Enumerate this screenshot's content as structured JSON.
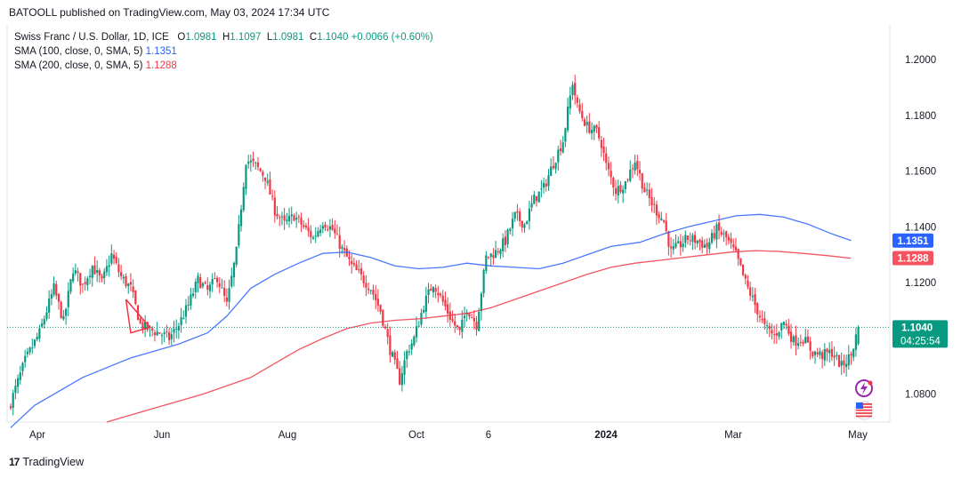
{
  "header": {
    "publisher": "BATOOLL published on TradingView.com, May 03, 2024 17:34 UTC"
  },
  "legend": {
    "symbol": "Swiss Franc / U.S. Dollar, 1D, ICE",
    "open_label": "O",
    "open": "1.0981",
    "high_label": "H",
    "high": "1.1097",
    "low_label": "L",
    "low": "1.0981",
    "close_label": "C",
    "close": "1.1040",
    "change": "+0.0066 (+0.60%)",
    "sma100_label": "SMA (100, close, 0, SMA, 5)",
    "sma100_value": "1.1351",
    "sma200_label": "SMA (200, close, 0, SMA, 5)",
    "sma200_value": "1.1288"
  },
  "price_tags": {
    "sma100": "1.1351",
    "sma200": "1.1288",
    "last": "1.1040",
    "countdown": "04:25:54"
  },
  "colors": {
    "up": "#089981",
    "down": "#f23645",
    "sma100": "#2962ff",
    "sma200": "#f23645",
    "last_tag": "#089981",
    "sma100_tag": "#2962ff",
    "sma200_tag": "#f7525f",
    "grid": "#f0f3fa"
  },
  "footer": {
    "brand": "TradingView"
  },
  "chart_data": {
    "type": "candlestick",
    "title": "Swiss Franc / U.S. Dollar, 1D, ICE",
    "y_ticks": [
      1.08,
      1.1,
      1.12,
      1.14,
      1.16,
      1.18,
      1.2
    ],
    "y_tick_labels": [
      "1.0800",
      "1.1000",
      "1.1200",
      "1.1400",
      "1.1600",
      "1.1800",
      "1.2000"
    ],
    "y_range": [
      1.07,
      1.2125
    ],
    "x_tick_labels": [
      "Apr",
      "Jun",
      "Aug",
      "Oct",
      "6",
      "2024",
      "Mar",
      "May"
    ],
    "grid": false,
    "last_close": 1.104,
    "close_path": [
      [
        0,
        1.077
      ],
      [
        6,
        1.092
      ],
      [
        12,
        1.102
      ],
      [
        18,
        1.118
      ],
      [
        22,
        1.106
      ],
      [
        26,
        1.125
      ],
      [
        30,
        1.119
      ],
      [
        34,
        1.126
      ],
      [
        38,
        1.12
      ],
      [
        42,
        1.13
      ],
      [
        46,
        1.122
      ],
      [
        50,
        1.118
      ],
      [
        54,
        1.105
      ],
      [
        58,
        1.103
      ],
      [
        62,
        1.102
      ],
      [
        66,
        1.1
      ],
      [
        70,
        1.105
      ],
      [
        74,
        1.112
      ],
      [
        78,
        1.121
      ],
      [
        82,
        1.117
      ],
      [
        86,
        1.122
      ],
      [
        90,
        1.112
      ],
      [
        94,
        1.131
      ],
      [
        98,
        1.164
      ],
      [
        102,
        1.162
      ],
      [
        106,
        1.158
      ],
      [
        110,
        1.146
      ],
      [
        114,
        1.141
      ],
      [
        118,
        1.144
      ],
      [
        122,
        1.14
      ],
      [
        126,
        1.136
      ],
      [
        130,
        1.142
      ],
      [
        134,
        1.139
      ],
      [
        138,
        1.132
      ],
      [
        142,
        1.126
      ],
      [
        146,
        1.122
      ],
      [
        150,
        1.118
      ],
      [
        154,
        1.11
      ],
      [
        158,
        1.096
      ],
      [
        162,
        1.085
      ],
      [
        165,
        1.095
      ],
      [
        168,
        1.1
      ],
      [
        172,
        1.112
      ],
      [
        176,
        1.12
      ],
      [
        180,
        1.113
      ],
      [
        184,
        1.106
      ],
      [
        187,
        1.102
      ],
      [
        190,
        1.111
      ],
      [
        194,
        1.105
      ],
      [
        198,
        1.129
      ],
      [
        202,
        1.131
      ],
      [
        206,
        1.135
      ],
      [
        210,
        1.144
      ],
      [
        214,
        1.141
      ],
      [
        218,
        1.15
      ],
      [
        222,
        1.154
      ],
      [
        226,
        1.163
      ],
      [
        230,
        1.171
      ],
      [
        234,
        1.192
      ],
      [
        236,
        1.183
      ],
      [
        240,
        1.176
      ],
      [
        244,
        1.174
      ],
      [
        246,
        1.17
      ],
      [
        248,
        1.162
      ],
      [
        252,
        1.153
      ],
      [
        256,
        1.156
      ],
      [
        260,
        1.164
      ],
      [
        264,
        1.153
      ],
      [
        268,
        1.147
      ],
      [
        272,
        1.142
      ],
      [
        275,
        1.131
      ],
      [
        278,
        1.133
      ],
      [
        282,
        1.136
      ],
      [
        286,
        1.135
      ],
      [
        290,
        1.133
      ],
      [
        294,
        1.139
      ],
      [
        298,
        1.136
      ],
      [
        302,
        1.13
      ],
      [
        306,
        1.12
      ],
      [
        310,
        1.112
      ],
      [
        314,
        1.104
      ],
      [
        318,
        1.101
      ],
      [
        322,
        1.106
      ],
      [
        326,
        1.099
      ],
      [
        330,
        1.1
      ],
      [
        334,
        1.095
      ],
      [
        338,
        1.094
      ],
      [
        342,
        1.095
      ],
      [
        346,
        1.09
      ],
      [
        350,
        1.094
      ],
      [
        353,
        1.104
      ]
    ],
    "series": [
      {
        "name": "SMA (100, close, 0, SMA, 5)",
        "values": [
          [
            0,
            1.068
          ],
          [
            10,
            1.076
          ],
          [
            30,
            1.086
          ],
          [
            50,
            1.093
          ],
          [
            70,
            1.098
          ],
          [
            82,
            1.102
          ],
          [
            90,
            1.108
          ],
          [
            100,
            1.118
          ],
          [
            110,
            1.123
          ],
          [
            120,
            1.127
          ],
          [
            130,
            1.1305
          ],
          [
            140,
            1.131
          ],
          [
            150,
            1.129
          ],
          [
            160,
            1.126
          ],
          [
            170,
            1.125
          ],
          [
            180,
            1.1255
          ],
          [
            190,
            1.127
          ],
          [
            200,
            1.126
          ],
          [
            210,
            1.1255
          ],
          [
            220,
            1.125
          ],
          [
            230,
            1.127
          ],
          [
            240,
            1.13
          ],
          [
            250,
            1.133
          ],
          [
            262,
            1.1345
          ],
          [
            272,
            1.1375
          ],
          [
            282,
            1.14
          ],
          [
            292,
            1.142
          ],
          [
            302,
            1.144
          ],
          [
            312,
            1.1445
          ],
          [
            322,
            1.1435
          ],
          [
            332,
            1.141
          ],
          [
            342,
            1.1375
          ],
          [
            350,
            1.1351
          ]
        ]
      },
      {
        "name": "SMA (200, close, 0, SMA, 5)",
        "values": [
          [
            40,
            1.07
          ],
          [
            60,
            1.075
          ],
          [
            80,
            1.08
          ],
          [
            100,
            1.086
          ],
          [
            110,
            1.091
          ],
          [
            120,
            1.096
          ],
          [
            130,
            1.1
          ],
          [
            140,
            1.1035
          ],
          [
            150,
            1.1055
          ],
          [
            160,
            1.1065
          ],
          [
            170,
            1.107
          ],
          [
            180,
            1.108
          ],
          [
            190,
            1.109
          ],
          [
            200,
            1.111
          ],
          [
            210,
            1.114
          ],
          [
            220,
            1.117
          ],
          [
            230,
            1.12
          ],
          [
            240,
            1.123
          ],
          [
            250,
            1.1255
          ],
          [
            260,
            1.127
          ],
          [
            270,
            1.128
          ],
          [
            280,
            1.129
          ],
          [
            290,
            1.13
          ],
          [
            300,
            1.131
          ],
          [
            310,
            1.1315
          ],
          [
            320,
            1.1312
          ],
          [
            330,
            1.1305
          ],
          [
            340,
            1.1297
          ],
          [
            350,
            1.1288
          ]
        ]
      }
    ]
  }
}
